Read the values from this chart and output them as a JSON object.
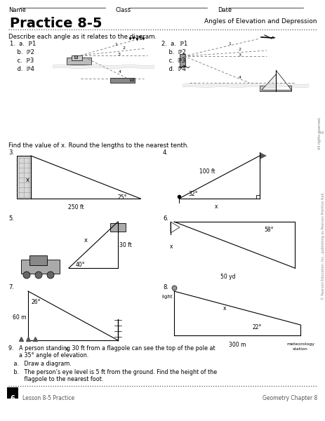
{
  "title": "Practice 8-5",
  "subtitle": "Angles of Elevation and Depression",
  "background_color": "#ffffff",
  "header": "Name ___________________________     Class ________________     Date _______________",
  "section1_label": "Describe each angle as it relates to the diagram.",
  "section2_label": "Find the value of x. Round the lengths to the nearest tenth.",
  "footer_page": "6",
  "footer_left": "Lesson 8-5 Practice",
  "footer_right": "Geometry Chapter 8",
  "p9_line1": "9.   A person standing 30 ft from a flagpole can see the top of the pole at",
  "p9_line2": "      a 35° angle of elevation.",
  "p9a": "   a.   Draw a diagram.",
  "p9b_line1": "   b.   The person’s eye level is 5 ft from the ground. Find the height of the",
  "p9b_line2": "         flagpole to the nearest foot."
}
